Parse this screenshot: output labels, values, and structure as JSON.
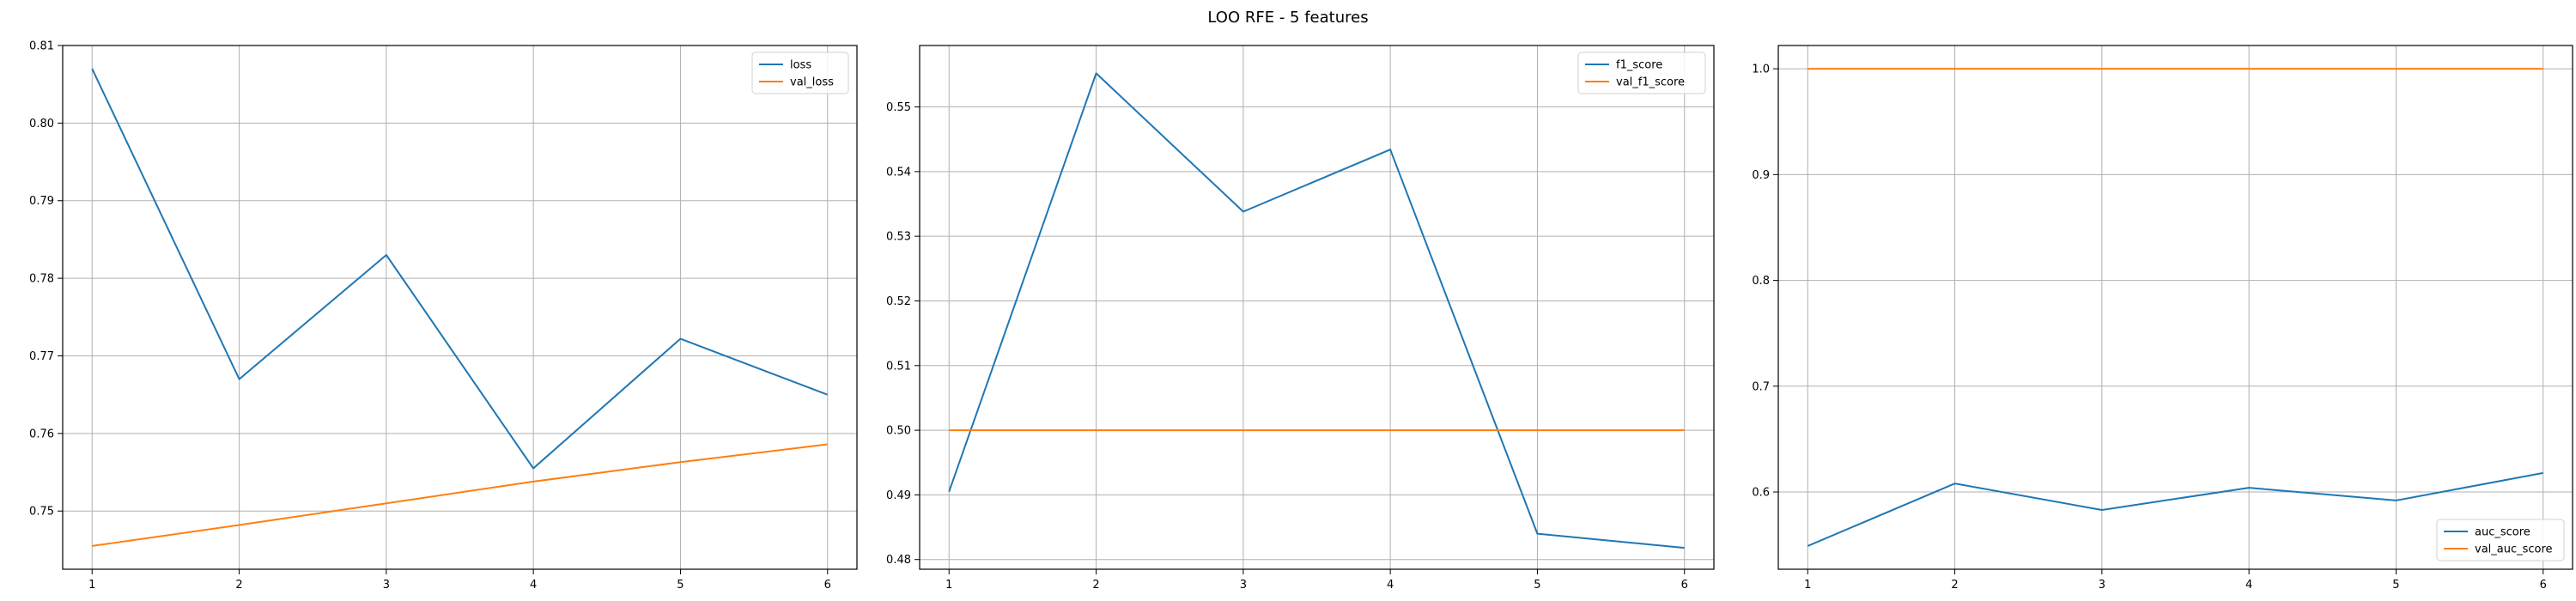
{
  "title": "LOO RFE - 5 features",
  "colors": {
    "series1": "#1f77b4",
    "series2": "#ff7f0e",
    "grid": "#b0b0b0"
  },
  "chart_data": [
    {
      "type": "line",
      "x": [
        1,
        2,
        3,
        4,
        5,
        6
      ],
      "series": [
        {
          "name": "loss",
          "values": [
            0.807,
            0.767,
            0.783,
            0.7555,
            0.7722,
            0.765
          ]
        },
        {
          "name": "val_loss",
          "values": [
            0.7455,
            0.7482,
            0.751,
            0.7538,
            0.7563,
            0.7586
          ]
        }
      ],
      "xlim": [
        0.8,
        6.2
      ],
      "ylim": [
        0.7425,
        0.81
      ],
      "yticks": [
        0.75,
        0.76,
        0.77,
        0.78,
        0.79,
        0.8,
        0.81
      ],
      "xticks": [
        1,
        2,
        3,
        4,
        5,
        6
      ],
      "grid": true,
      "legend": "upper right"
    },
    {
      "type": "line",
      "x": [
        1,
        2,
        3,
        4,
        5,
        6
      ],
      "series": [
        {
          "name": "f1_score",
          "values": [
            0.4905,
            0.5552,
            0.5338,
            0.5434,
            0.484,
            0.4818
          ]
        },
        {
          "name": "val_f1_score",
          "values": [
            0.5,
            0.5,
            0.5,
            0.5,
            0.5,
            0.5
          ]
        }
      ],
      "xlim": [
        0.8,
        6.2
      ],
      "ylim": [
        0.4785,
        0.5595
      ],
      "yticks": [
        0.48,
        0.49,
        0.5,
        0.51,
        0.52,
        0.53,
        0.54,
        0.55
      ],
      "xticks": [
        1,
        2,
        3,
        4,
        5,
        6
      ],
      "grid": true,
      "legend": "upper right"
    },
    {
      "type": "line",
      "x": [
        1,
        2,
        3,
        4,
        5,
        6
      ],
      "series": [
        {
          "name": "auc_score",
          "values": [
            0.549,
            0.608,
            0.583,
            0.604,
            0.592,
            0.618
          ]
        },
        {
          "name": "val_auc_score",
          "values": [
            1.0,
            1.0,
            1.0,
            1.0,
            1.0,
            1.0
          ]
        }
      ],
      "xlim": [
        0.8,
        6.2
      ],
      "ylim": [
        0.527,
        1.022
      ],
      "yticks": [
        0.6,
        0.7,
        0.8,
        0.9,
        1.0
      ],
      "xticks": [
        1,
        2,
        3,
        4,
        5,
        6
      ],
      "grid": true,
      "legend": "lower right"
    }
  ]
}
